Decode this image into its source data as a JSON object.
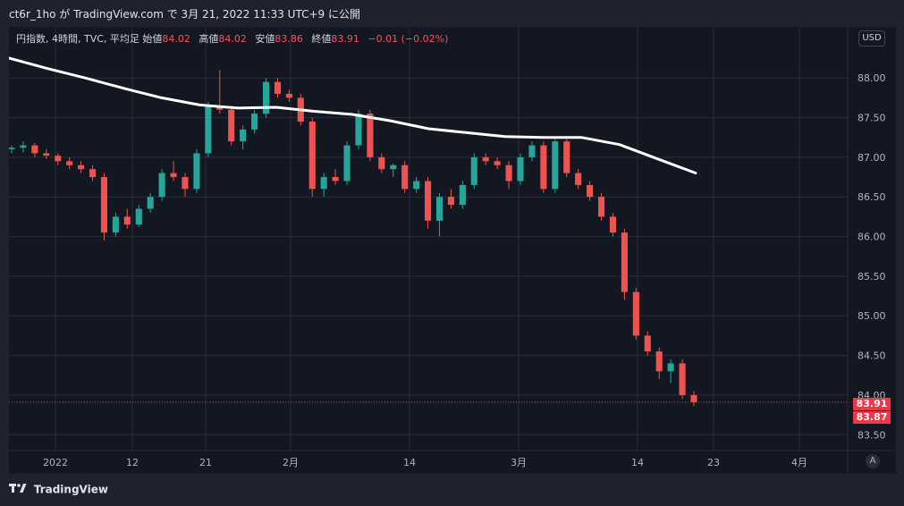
{
  "header": {
    "caption": "ct6r_1ho が TradingView.com で 3月 21, 2022 11:33 UTC+9 に公開"
  },
  "legend": {
    "symbol": "円指数, 4時間, TVC, 平均足",
    "open_label": "始値",
    "open": "84.02",
    "high_label": "高値",
    "high": "84.02",
    "low_label": "安値",
    "low": "83.86",
    "close_label": "終値",
    "close": "83.91",
    "change": "−0.01 (−0.02%)"
  },
  "currency_button": "USD",
  "auto_button": "A",
  "footer": {
    "brand": "TradingView"
  },
  "colors": {
    "up": "#26a69a",
    "down": "#ef5350",
    "ma": "#ffffff",
    "background": "#131722",
    "grid": "#2a2e39",
    "tag_red": "#f23645"
  },
  "icons": {
    "logo": "tradingview-logo-icon",
    "auto": "auto-scale-icon"
  },
  "chart_data": {
    "type": "candlestick",
    "title": "円指数, 4時間, TVC, 平均足",
    "xlabel": "",
    "ylabel": "",
    "ylim": [
      83.3,
      88.6
    ],
    "yticks": [
      "88.00",
      "87.50",
      "87.00",
      "86.50",
      "86.00",
      "85.50",
      "85.00",
      "84.50",
      "84.00",
      "83.50"
    ],
    "xticks": [
      "2022",
      "12",
      "21",
      "2月",
      "14",
      "3月",
      "14",
      "23",
      "4月"
    ],
    "price_tags": [
      "83.91",
      "83.87"
    ],
    "last_price": 83.91,
    "series": [
      {
        "type": "candles",
        "ohlc": [
          [
            87.1,
            87.15,
            87.05,
            87.12
          ],
          [
            87.12,
            87.2,
            87.06,
            87.15
          ],
          [
            87.15,
            87.18,
            87.0,
            87.05
          ],
          [
            87.05,
            87.1,
            86.98,
            87.02
          ],
          [
            87.02,
            87.05,
            86.9,
            86.95
          ],
          [
            86.95,
            87.0,
            86.85,
            86.9
          ],
          [
            86.9,
            86.95,
            86.8,
            86.85
          ],
          [
            86.85,
            86.9,
            86.7,
            86.75
          ],
          [
            86.75,
            86.8,
            85.95,
            86.05
          ],
          [
            86.05,
            86.3,
            86.0,
            86.25
          ],
          [
            86.25,
            86.35,
            86.1,
            86.15
          ],
          [
            86.15,
            86.4,
            86.12,
            86.35
          ],
          [
            86.35,
            86.55,
            86.3,
            86.5
          ],
          [
            86.5,
            86.85,
            86.45,
            86.8
          ],
          [
            86.8,
            86.95,
            86.7,
            86.75
          ],
          [
            86.75,
            86.8,
            86.5,
            86.6
          ],
          [
            86.6,
            87.1,
            86.55,
            87.05
          ],
          [
            87.05,
            87.7,
            87.0,
            87.65
          ],
          [
            87.65,
            88.1,
            87.55,
            87.6
          ],
          [
            87.6,
            87.65,
            87.15,
            87.2
          ],
          [
            87.2,
            87.4,
            87.1,
            87.35
          ],
          [
            87.35,
            87.6,
            87.3,
            87.55
          ],
          [
            87.55,
            88.0,
            87.5,
            87.95
          ],
          [
            87.95,
            88.0,
            87.75,
            87.8
          ],
          [
            87.8,
            87.85,
            87.7,
            87.75
          ],
          [
            87.75,
            87.8,
            87.4,
            87.45
          ],
          [
            87.45,
            87.5,
            86.5,
            86.6
          ],
          [
            86.6,
            86.8,
            86.5,
            86.75
          ],
          [
            86.75,
            86.85,
            86.65,
            86.7
          ],
          [
            86.7,
            87.2,
            86.65,
            87.15
          ],
          [
            87.15,
            87.6,
            87.1,
            87.55
          ],
          [
            87.55,
            87.6,
            86.95,
            87.0
          ],
          [
            87.0,
            87.05,
            86.8,
            86.85
          ],
          [
            86.85,
            86.92,
            86.75,
            86.9
          ],
          [
            86.9,
            86.95,
            86.55,
            86.6
          ],
          [
            86.6,
            86.75,
            86.55,
            86.7
          ],
          [
            86.7,
            86.75,
            86.1,
            86.2
          ],
          [
            86.2,
            86.55,
            86.0,
            86.5
          ],
          [
            86.5,
            86.6,
            86.35,
            86.4
          ],
          [
            86.4,
            86.7,
            86.35,
            86.65
          ],
          [
            86.65,
            87.05,
            86.6,
            87.0
          ],
          [
            87.0,
            87.05,
            86.9,
            86.95
          ],
          [
            86.95,
            87.0,
            86.85,
            86.9
          ],
          [
            86.9,
            86.95,
            86.6,
            86.7
          ],
          [
            86.7,
            87.05,
            86.65,
            87.0
          ],
          [
            87.0,
            87.2,
            86.95,
            87.15
          ],
          [
            87.15,
            87.2,
            86.55,
            86.6
          ],
          [
            86.6,
            87.25,
            86.55,
            87.2
          ],
          [
            87.2,
            87.25,
            86.75,
            86.8
          ],
          [
            86.8,
            86.85,
            86.6,
            86.65
          ],
          [
            86.65,
            86.7,
            86.45,
            86.5
          ],
          [
            86.5,
            86.55,
            86.2,
            86.25
          ],
          [
            86.25,
            86.3,
            86.0,
            86.05
          ],
          [
            86.05,
            86.1,
            85.2,
            85.3
          ],
          [
            85.3,
            85.35,
            84.7,
            84.75
          ],
          [
            84.75,
            84.8,
            84.5,
            84.55
          ],
          [
            84.55,
            84.6,
            84.2,
            84.3
          ],
          [
            84.3,
            84.45,
            84.15,
            84.4
          ],
          [
            84.4,
            84.45,
            83.95,
            84.0
          ],
          [
            84.0,
            84.05,
            83.86,
            83.91
          ]
        ]
      },
      {
        "type": "line",
        "values": [
          88.25,
          88.12,
          88.0,
          87.87,
          87.75,
          87.66,
          87.62,
          87.63,
          87.58,
          87.54,
          87.46,
          87.36,
          87.31,
          87.26,
          87.25,
          87.25,
          87.16,
          86.98,
          86.8
        ]
      }
    ]
  }
}
